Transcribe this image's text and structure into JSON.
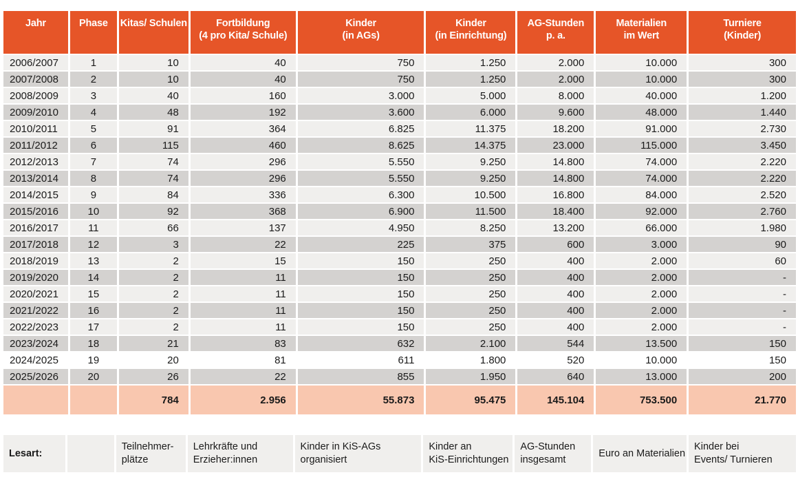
{
  "colors": {
    "header_bg": "#E65528",
    "header_text": "#FFFFFF",
    "row_light": "#F0EFED",
    "row_dark": "#D4D2D0",
    "row_highlight": "#FFFFFF",
    "totals_bg": "#F9C7AF",
    "body_text": "#1A1A1A"
  },
  "chart_data": {
    "type": "table",
    "number_format": "German thousands separator (.)",
    "columns": [
      "Jahr",
      "Phase",
      "Kitas/ Schulen",
      "Fortbildung\n(4 pro Kita/ Schule)",
      "Kinder\n(in AGs)",
      "Kinder\n(in Einrichtung)",
      "AG-Stunden\np. a.",
      "Materialien\nim Wert",
      "Turniere\n(Kinder)"
    ],
    "rows": [
      {
        "shade": "light",
        "cells": [
          "2006/2007",
          "1",
          "10",
          "40",
          "750",
          "1.250",
          "2.000",
          "10.000",
          "300"
        ]
      },
      {
        "shade": "dark",
        "cells": [
          "2007/2008",
          "2",
          "10",
          "40",
          "750",
          "1.250",
          "2.000",
          "10.000",
          "300"
        ]
      },
      {
        "shade": "light",
        "cells": [
          "2008/2009",
          "3",
          "40",
          "160",
          "3.000",
          "5.000",
          "8.000",
          "40.000",
          "1.200"
        ]
      },
      {
        "shade": "dark",
        "cells": [
          "2009/2010",
          "4",
          "48",
          "192",
          "3.600",
          "6.000",
          "9.600",
          "48.000",
          "1.440"
        ]
      },
      {
        "shade": "light",
        "cells": [
          "2010/2011",
          "5",
          "91",
          "364",
          "6.825",
          "11.375",
          "18.200",
          "91.000",
          "2.730"
        ]
      },
      {
        "shade": "dark",
        "cells": [
          "2011/2012",
          "6",
          "115",
          "460",
          "8.625",
          "14.375",
          "23.000",
          "115.000",
          "3.450"
        ]
      },
      {
        "shade": "light",
        "cells": [
          "2012/2013",
          "7",
          "74",
          "296",
          "5.550",
          "9.250",
          "14.800",
          "74.000",
          "2.220"
        ]
      },
      {
        "shade": "dark",
        "cells": [
          "2013/2014",
          "8",
          "74",
          "296",
          "5.550",
          "9.250",
          "14.800",
          "74.000",
          "2.220"
        ]
      },
      {
        "shade": "light",
        "cells": [
          "2014/2015",
          "9",
          "84",
          "336",
          "6.300",
          "10.500",
          "16.800",
          "84.000",
          "2.520"
        ]
      },
      {
        "shade": "dark",
        "cells": [
          "2015/2016",
          "10",
          "92",
          "368",
          "6.900",
          "11.500",
          "18.400",
          "92.000",
          "2.760"
        ]
      },
      {
        "shade": "light",
        "cells": [
          "2016/2017",
          "11",
          "66",
          "137",
          "4.950",
          "8.250",
          "13.200",
          "66.000",
          "1.980"
        ]
      },
      {
        "shade": "dark",
        "cells": [
          "2017/2018",
          "12",
          "3",
          "22",
          "225",
          "375",
          "600",
          "3.000",
          "90"
        ]
      },
      {
        "shade": "light",
        "cells": [
          "2018/2019",
          "13",
          "2",
          "15",
          "150",
          "250",
          "400",
          "2.000",
          "60"
        ]
      },
      {
        "shade": "dark",
        "cells": [
          "2019/2020",
          "14",
          "2",
          "11",
          "150",
          "250",
          "400",
          "2.000",
          "-"
        ]
      },
      {
        "shade": "light",
        "cells": [
          "2020/2021",
          "15",
          "2",
          "11",
          "150",
          "250",
          "400",
          "2.000",
          "-"
        ]
      },
      {
        "shade": "dark",
        "cells": [
          "2021/2022",
          "16",
          "2",
          "11",
          "150",
          "250",
          "400",
          "2.000",
          "-"
        ]
      },
      {
        "shade": "light",
        "cells": [
          "2022/2023",
          "17",
          "2",
          "11",
          "150",
          "250",
          "400",
          "2.000",
          "-"
        ]
      },
      {
        "shade": "dark",
        "cells": [
          "2023/2024",
          "18",
          "21",
          "83",
          "632",
          "2.100",
          "544",
          "13.500",
          "150"
        ]
      },
      {
        "shade": "white",
        "cells": [
          "2024/2025",
          "19",
          "20",
          "81",
          "611",
          "1.800",
          "520",
          "10.000",
          "150"
        ]
      },
      {
        "shade": "dark",
        "cells": [
          "2025/2026",
          "20",
          "26",
          "22",
          "855",
          "1.950",
          "640",
          "13.000",
          "200"
        ]
      }
    ],
    "totals_row": [
      "",
      "",
      "784",
      "2.956",
      "55.873",
      "95.475",
      "145.104",
      "753.500",
      "21.770"
    ],
    "lesart_row": [
      "Lesart:",
      "",
      "Teilnehmer-\nplätze",
      "Lehrkräfte und\nErzieher:innen",
      "Kinder in KiS-AGs\norganisiert",
      "Kinder an\nKiS-Einrichtungen",
      "AG-Stunden\ninsgesamt",
      "Euro an Materialien",
      "Kinder bei\nEvents/ Turnieren"
    ]
  }
}
